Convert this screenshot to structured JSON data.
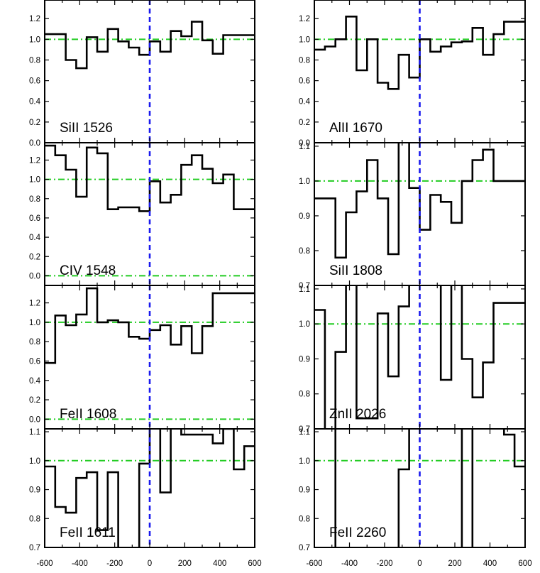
{
  "chart_data": [
    {
      "type": "line",
      "label": "SiII 1526",
      "xlim": [
        -600,
        600
      ],
      "ylim": [
        0,
        1.38
      ],
      "yticks": [
        "0.0",
        "0.2",
        "0.4",
        "0.6",
        "0.8",
        "1.0",
        "1.2"
      ],
      "ytick_values": [
        0,
        0.2,
        0.4,
        0.6,
        0.8,
        1.0,
        1.2
      ],
      "reference_lines": {
        "continuum": 1.0,
        "zero": 0.0,
        "velocity_zero": 0
      },
      "series": [
        {
          "step_x": [
            -600,
            -540,
            -480,
            -420,
            -360,
            -300,
            -240,
            -180,
            -120,
            -60,
            0,
            60,
            120,
            180,
            240,
            300,
            360,
            420,
            480,
            540,
            600
          ],
          "values": [
            1.05,
            1.05,
            0.8,
            0.72,
            1.02,
            0.88,
            1.1,
            0.98,
            0.92,
            0.85,
            0.98,
            0.88,
            1.08,
            1.03,
            1.17,
            0.99,
            0.86,
            1.04,
            1.04,
            1.04
          ]
        }
      ]
    },
    {
      "type": "line",
      "label": "AlII 1670",
      "xlim": [
        -600,
        600
      ],
      "ylim": [
        0,
        1.38
      ],
      "yticks": [
        "0.0",
        "0.2",
        "0.4",
        "0.6",
        "0.8",
        "1.0",
        "1.2"
      ],
      "ytick_values": [
        0,
        0.2,
        0.4,
        0.6,
        0.8,
        1.0,
        1.2
      ],
      "reference_lines": {
        "continuum": 1.0,
        "zero": 0.0,
        "velocity_zero": 0
      },
      "series": [
        {
          "step_x": [
            -600,
            -540,
            -480,
            -420,
            -360,
            -300,
            -240,
            -180,
            -120,
            -60,
            0,
            60,
            120,
            180,
            240,
            300,
            360,
            420,
            480,
            540,
            600
          ],
          "values": [
            0.9,
            0.93,
            1.0,
            1.22,
            0.7,
            1.0,
            0.58,
            0.52,
            0.85,
            0.63,
            1.0,
            0.88,
            0.93,
            0.97,
            0.98,
            1.11,
            0.85,
            1.05,
            1.17,
            1.17
          ]
        }
      ]
    },
    {
      "type": "line",
      "label": "CIV 1548",
      "xlim": [
        -600,
        600
      ],
      "ylim": [
        -0.1,
        1.38
      ],
      "yticks": [
        "0.0",
        "0.2",
        "0.4",
        "0.6",
        "0.8",
        "1.0",
        "1.2"
      ],
      "ytick_values": [
        0,
        0.2,
        0.4,
        0.6,
        0.8,
        1.0,
        1.2
      ],
      "reference_lines": {
        "continuum": 1.0,
        "zero": 0.0,
        "velocity_zero": 0
      },
      "series": [
        {
          "step_x": [
            -600,
            -540,
            -480,
            -420,
            -360,
            -300,
            -240,
            -180,
            -120,
            -60,
            0,
            60,
            120,
            180,
            240,
            300,
            360,
            420,
            480,
            540,
            600
          ],
          "values": [
            1.35,
            1.25,
            1.1,
            0.82,
            1.33,
            1.27,
            0.69,
            0.71,
            0.71,
            0.67,
            0.98,
            0.76,
            0.84,
            1.15,
            1.25,
            1.11,
            0.96,
            1.05,
            0.69,
            0.69
          ]
        }
      ]
    },
    {
      "type": "line",
      "label": "SiII 1808",
      "xlim": [
        -600,
        600
      ],
      "ylim": [
        0.7,
        1.11
      ],
      "yticks": [
        "0.7",
        "0.8",
        "0.9",
        "1.0",
        "1.1"
      ],
      "ytick_values": [
        0.7,
        0.8,
        0.9,
        1.0,
        1.1
      ],
      "reference_lines": {
        "continuum": 1.0,
        "velocity_zero": 0
      },
      "series": [
        {
          "step_x": [
            -600,
            -540,
            -480,
            -420,
            -360,
            -300,
            -240,
            -180,
            -120,
            -60,
            0,
            60,
            120,
            180,
            240,
            300,
            360,
            420,
            480,
            540,
            600
          ],
          "values": [
            0.95,
            0.95,
            0.78,
            0.91,
            0.97,
            1.06,
            0.95,
            0.79,
            1.12,
            0.98,
            0.86,
            0.96,
            0.94,
            0.88,
            1.0,
            1.06,
            1.09,
            1.0,
            1.0,
            1.0
          ]
        }
      ]
    },
    {
      "type": "line",
      "label": "FeII 1608",
      "xlim": [
        -600,
        600
      ],
      "ylim": [
        -0.1,
        1.38
      ],
      "yticks": [
        "0.0",
        "0.2",
        "0.4",
        "0.6",
        "0.8",
        "1.0",
        "1.2"
      ],
      "ytick_values": [
        0,
        0.2,
        0.4,
        0.6,
        0.8,
        1.0,
        1.2
      ],
      "reference_lines": {
        "continuum": 1.0,
        "zero": 0.0,
        "velocity_zero": 0
      },
      "series": [
        {
          "step_x": [
            -600,
            -540,
            -480,
            -420,
            -360,
            -300,
            -240,
            -180,
            -120,
            -60,
            0,
            60,
            120,
            180,
            240,
            300,
            360,
            420,
            480,
            540,
            600
          ],
          "values": [
            0.58,
            1.07,
            0.97,
            1.08,
            1.35,
            1.0,
            1.02,
            1.0,
            0.85,
            0.83,
            0.92,
            0.97,
            0.77,
            0.96,
            0.68,
            0.96,
            1.3,
            1.3,
            1.3,
            1.3
          ]
        }
      ]
    },
    {
      "type": "line",
      "label": "ZnII 2026",
      "xlim": [
        -600,
        600
      ],
      "ylim": [
        0.7,
        1.11
      ],
      "yticks": [
        "0.7",
        "0.8",
        "0.9",
        "1.0",
        "1.1"
      ],
      "ytick_values": [
        0.7,
        0.8,
        0.9,
        1.0,
        1.1
      ],
      "reference_lines": {
        "continuum": 1.0,
        "velocity_zero": 0
      },
      "series": [
        {
          "step_x": [
            -600,
            -540,
            -480,
            -420,
            -360,
            -300,
            -240,
            -180,
            -120,
            -60,
            0,
            60,
            120,
            180,
            240,
            300,
            360,
            420,
            480,
            540,
            600
          ],
          "values": [
            1.04,
            0.65,
            0.92,
            1.15,
            0.73,
            0.73,
            1.03,
            0.85,
            1.05,
            1.15,
            1.15,
            1.15,
            0.84,
            1.15,
            0.9,
            0.79,
            0.89,
            1.06,
            1.06,
            1.06
          ]
        }
      ]
    },
    {
      "type": "line",
      "label": "FeII 1611",
      "xlim": [
        -600,
        600
      ],
      "ylim": [
        0.7,
        1.11
      ],
      "yticks": [
        "0.7",
        "0.8",
        "0.9",
        "1.0",
        "1.1"
      ],
      "ytick_values": [
        0.7,
        0.8,
        0.9,
        1.0,
        1.1
      ],
      "reference_lines": {
        "continuum": 1.0,
        "velocity_zero": 0
      },
      "series": [
        {
          "step_x": [
            -600,
            -540,
            -480,
            -420,
            -360,
            -300,
            -240,
            -180,
            -120,
            -60,
            0,
            60,
            120,
            180,
            240,
            300,
            360,
            420,
            480,
            540,
            600
          ],
          "values": [
            0.98,
            0.84,
            0.82,
            0.94,
            0.96,
            0.76,
            0.96,
            0.65,
            0.65,
            0.99,
            1.15,
            0.89,
            1.15,
            1.09,
            1.09,
            1.09,
            1.06,
            1.11,
            0.97,
            1.05
          ]
        }
      ]
    },
    {
      "type": "line",
      "label": "FeII 2260",
      "xlim": [
        -600,
        600
      ],
      "ylim": [
        0.7,
        1.11
      ],
      "yticks": [
        "0.7",
        "0.8",
        "0.9",
        "1.0",
        "1.1"
      ],
      "ytick_values": [
        0.7,
        0.8,
        0.9,
        1.0,
        1.1
      ],
      "reference_lines": {
        "continuum": 1.0,
        "velocity_zero": 0
      },
      "series": [
        {
          "step_x": [
            -600,
            -540,
            -480,
            -420,
            -360,
            -300,
            -240,
            -180,
            -120,
            -60,
            0,
            60,
            120,
            180,
            240,
            300,
            360,
            420,
            480,
            540,
            600
          ],
          "values": [
            1.15,
            1.15,
            0.65,
            0.65,
            0.65,
            0.65,
            0.65,
            0.65,
            0.97,
            1.15,
            1.15,
            1.15,
            1.15,
            1.15,
            0.65,
            1.15,
            1.15,
            1.15,
            1.09,
            0.98
          ]
        }
      ]
    }
  ],
  "x_axis": {
    "tick_labels": [
      "-600",
      "-400",
      "-200",
      "0",
      "200",
      "400",
      "600"
    ],
    "tick_values": [
      -600,
      -400,
      -200,
      0,
      200,
      400,
      600
    ]
  },
  "colors": {
    "data": "#000000",
    "continuum_line": "#22cc22",
    "velocity_zero_line": "#1a1aee",
    "frame": "#000000"
  }
}
